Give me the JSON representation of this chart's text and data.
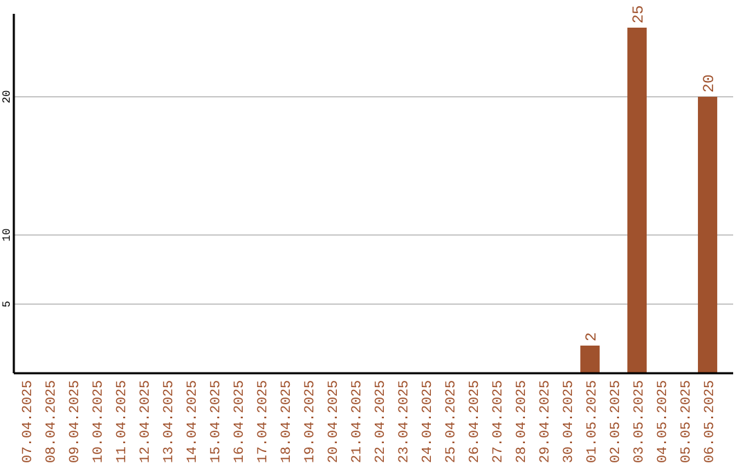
{
  "chart_data": {
    "type": "bar",
    "categories": [
      "07.04.2025",
      "08.04.2025",
      "09.04.2025",
      "10.04.2025",
      "11.04.2025",
      "12.04.2025",
      "13.04.2025",
      "14.04.2025",
      "15.04.2025",
      "16.04.2025",
      "17.04.2025",
      "18.04.2025",
      "19.04.2025",
      "20.04.2025",
      "21.04.2025",
      "22.04.2025",
      "23.04.2025",
      "24.04.2025",
      "25.04.2025",
      "26.04.2025",
      "27.04.2025",
      "28.04.2025",
      "29.04.2025",
      "30.04.2025",
      "01.05.2025",
      "02.05.2025",
      "03.05.2025",
      "04.05.2025",
      "05.05.2025",
      "06.05.2025"
    ],
    "values": [
      0,
      0,
      0,
      0,
      0,
      0,
      0,
      0,
      0,
      0,
      0,
      0,
      0,
      0,
      0,
      0,
      0,
      0,
      0,
      0,
      0,
      0,
      0,
      0,
      2,
      0,
      25,
      0,
      0,
      20
    ],
    "value_labels": [
      null,
      null,
      null,
      null,
      null,
      null,
      null,
      null,
      null,
      null,
      null,
      null,
      null,
      null,
      null,
      null,
      null,
      null,
      null,
      null,
      null,
      null,
      null,
      null,
      "2",
      null,
      "25",
      null,
      null,
      "20"
    ],
    "color": "#a0522d",
    "ylim": [
      0,
      26
    ],
    "yticks": [
      5,
      10,
      20
    ],
    "grid": "y"
  }
}
